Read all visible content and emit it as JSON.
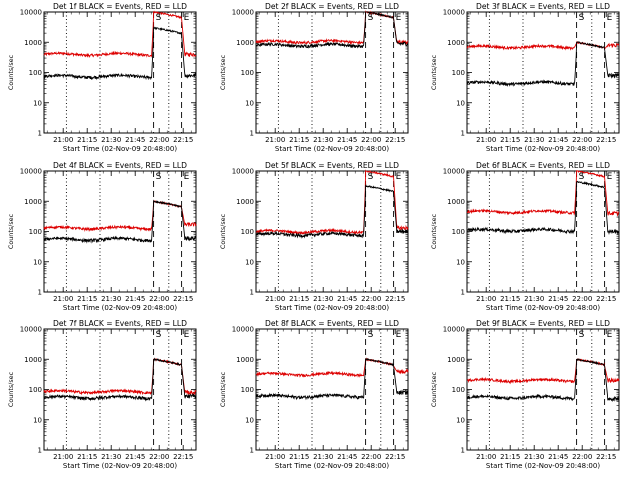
{
  "chart_data": {
    "type": "line",
    "layout": "3x3 grid",
    "xlabel": "Start Time (02-Nov-09 20:48:00)",
    "ylabel": "Counts/sec",
    "y_scale": "log",
    "ylim": [
      1,
      10000
    ],
    "y_tick_labels": [
      "1",
      "10",
      "100",
      "1000",
      "10000"
    ],
    "x_range_minutes": [
      0,
      95
    ],
    "x_ticks": [
      {
        "label": "21:00",
        "minute": 12
      },
      {
        "label": "21:15",
        "minute": 27
      },
      {
        "label": "21:30",
        "minute": 42
      },
      {
        "label": "21:45",
        "minute": 57
      },
      {
        "label": "22:00",
        "minute": 72
      },
      {
        "label": "22:15",
        "minute": 87
      }
    ],
    "markers": [
      {
        "type": "dotted",
        "minute": 14
      },
      {
        "type": "dotted",
        "minute": 35
      },
      {
        "type": "dashed",
        "minute": 68.5,
        "label": "S"
      },
      {
        "type": "dotted",
        "minute": 78
      },
      {
        "type": "dashed",
        "minute": 86,
        "label": "E"
      }
    ],
    "series_legend": {
      "black": "Events",
      "red": "LLD"
    },
    "colors": {
      "events": "#000000",
      "lld": "#dd0000"
    },
    "panels": [
      {
        "title": "Det 1f BLACK = Events, RED = LLD",
        "events_base": 75,
        "events_post": 80,
        "lld_base": 400,
        "lld_post": 400,
        "lld_peak": 10000
      },
      {
        "title": "Det 2f BLACK = Events, RED = LLD",
        "events_base": 800,
        "events_post": 900,
        "lld_base": 1050,
        "lld_post": 1000,
        "lld_peak": 10000
      },
      {
        "title": "Det 3f BLACK = Events, RED = LLD",
        "events_base": 45,
        "events_post": 80,
        "lld_base": 700,
        "lld_post": 800,
        "lld_peak": 1000
      },
      {
        "title": "Det 4f BLACK = Events, RED = LLD",
        "events_base": 55,
        "events_post": 60,
        "lld_base": 130,
        "lld_post": 170,
        "lld_peak": 1000
      },
      {
        "title": "Det 5f BLACK = Events, RED = LLD",
        "events_base": 80,
        "events_post": 100,
        "lld_base": 100,
        "lld_post": 130,
        "lld_peak": 10000
      },
      {
        "title": "Det 6f BLACK = Events, RED = LLD",
        "events_base": 110,
        "events_post": 100,
        "lld_base": 450,
        "lld_post": 400,
        "lld_peak": 10000
      },
      {
        "title": "Det 7f BLACK = Events, RED = LLD",
        "events_base": 55,
        "events_post": 60,
        "lld_base": 85,
        "lld_post": 80,
        "lld_peak": 1000
      },
      {
        "title": "Det 8f BLACK = Events, RED = LLD",
        "events_base": 60,
        "events_post": 80,
        "lld_base": 320,
        "lld_post": 400,
        "lld_peak": 1000
      },
      {
        "title": "Det 9f BLACK = Events, RED = LLD",
        "events_base": 55,
        "events_post": 50,
        "lld_base": 200,
        "lld_post": 200,
        "lld_peak": 1000
      }
    ]
  }
}
